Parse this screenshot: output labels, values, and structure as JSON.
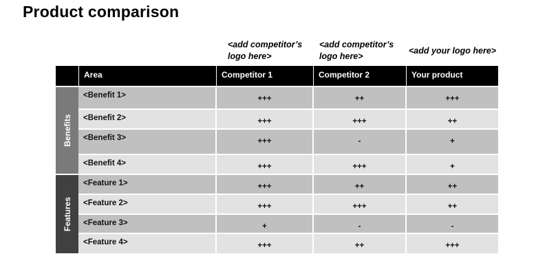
{
  "title": "Product comparison",
  "logos": {
    "competitor1": "<add competitor’s logo here>",
    "competitor2": "<add competitor’s logo here>",
    "yours": "<add your logo here>"
  },
  "header": {
    "area": "Area",
    "competitor1": "Competitor 1",
    "competitor2": "Competitor 2",
    "yours": "Your product"
  },
  "groups": {
    "benefits": "Benefits",
    "features": "Features"
  },
  "rows": [
    {
      "area": "<Benefit 1>",
      "c1": "+++",
      "c2": "++",
      "yours": "+++"
    },
    {
      "area": "<Benefit 2>",
      "c1": "+++",
      "c2": "+++",
      "yours": "++"
    },
    {
      "area": "<Benefit 3>",
      "c1": "+++",
      "c2": "-",
      "yours": "+"
    },
    {
      "area": "<Benefit 4>",
      "c1": "+++",
      "c2": "+++",
      "yours": "+"
    },
    {
      "area": "<Feature 1>",
      "c1": "+++",
      "c2": "++",
      "yours": "++"
    },
    {
      "area": "<Feature 2>",
      "c1": "+++",
      "c2": "+++",
      "yours": "++"
    },
    {
      "area": "<Feature 3>",
      "c1": "+",
      "c2": "-",
      "yours": "-"
    },
    {
      "area": "<Feature 4>",
      "c1": "+++",
      "c2": "++",
      "yours": "+++"
    }
  ],
  "colors": {
    "header_bg": "#000000",
    "benefits_band": "#7a7a7a",
    "features_band": "#404040",
    "row_dark": "#c0c0c0",
    "row_light": "#e2e2e2"
  }
}
